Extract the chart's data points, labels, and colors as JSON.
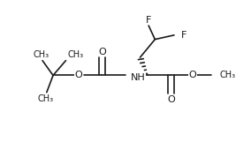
{
  "background_color": "#ffffff",
  "line_color": "#1a1a1a",
  "line_width": 1.2,
  "font_size": 7.5,
  "figsize": [
    2.84,
    1.78
  ],
  "dpi": 100,
  "xlim": [
    0,
    10
  ],
  "ylim": [
    0,
    10
  ]
}
